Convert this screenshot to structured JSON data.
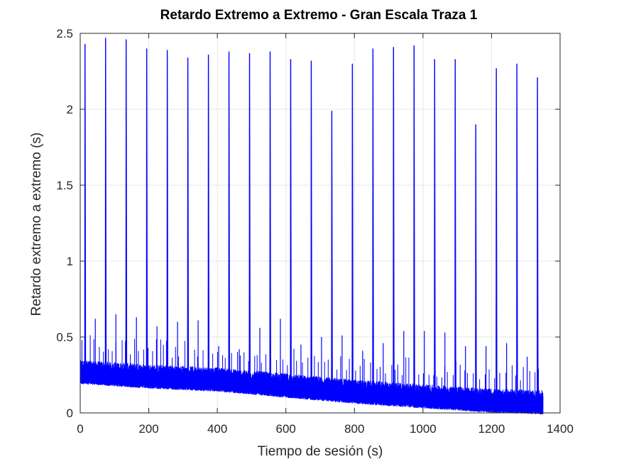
{
  "chart_data": {
    "type": "line",
    "title": "Retardo Extremo a Extremo - Gran Escala Traza 1",
    "xlabel": "Tiempo de sesión (s)",
    "ylabel": "Retardo extremo a extremo (s)",
    "xlim": [
      0,
      1400
    ],
    "ylim": [
      0,
      2.5
    ],
    "xticks": [
      "0",
      "200",
      "400",
      "600",
      "800",
      "1000",
      "1200",
      "1400"
    ],
    "yticks": [
      "0",
      "0.5",
      "1",
      "1.5",
      "2",
      "2.5"
    ],
    "grid": true,
    "legend": "none",
    "line_color": "#0000ff",
    "x_end": 1350,
    "baseline": {
      "description_points": [
        [
          0,
          0.25
        ],
        [
          200,
          0.22
        ],
        [
          400,
          0.2
        ],
        [
          600,
          0.16
        ],
        [
          800,
          0.12
        ],
        [
          1000,
          0.09
        ],
        [
          1200,
          0.06
        ],
        [
          1350,
          0.05
        ]
      ],
      "noise_amplitude": 0.1
    },
    "major_spikes": [
      {
        "x": 14,
        "y": 2.43
      },
      {
        "x": 74,
        "y": 2.47
      },
      {
        "x": 134,
        "y": 2.46
      },
      {
        "x": 194,
        "y": 2.4
      },
      {
        "x": 254,
        "y": 2.39
      },
      {
        "x": 314,
        "y": 2.34
      },
      {
        "x": 374,
        "y": 2.36
      },
      {
        "x": 434,
        "y": 2.38
      },
      {
        "x": 494,
        "y": 2.37
      },
      {
        "x": 554,
        "y": 2.38
      },
      {
        "x": 614,
        "y": 2.33
      },
      {
        "x": 674,
        "y": 2.32
      },
      {
        "x": 734,
        "y": 1.99
      },
      {
        "x": 794,
        "y": 2.3
      },
      {
        "x": 854,
        "y": 2.4
      },
      {
        "x": 914,
        "y": 2.41
      },
      {
        "x": 974,
        "y": 2.42
      },
      {
        "x": 1034,
        "y": 2.33
      },
      {
        "x": 1094,
        "y": 2.33
      },
      {
        "x": 1154,
        "y": 1.9
      },
      {
        "x": 1214,
        "y": 2.27
      },
      {
        "x": 1274,
        "y": 2.3
      },
      {
        "x": 1334,
        "y": 2.21
      }
    ],
    "minor_spikes": [
      {
        "x": 44,
        "y": 0.62
      },
      {
        "x": 104,
        "y": 0.65
      },
      {
        "x": 164,
        "y": 0.63
      },
      {
        "x": 224,
        "y": 0.57
      },
      {
        "x": 284,
        "y": 0.6
      },
      {
        "x": 344,
        "y": 0.61
      },
      {
        "x": 404,
        "y": 0.44
      },
      {
        "x": 464,
        "y": 0.42
      },
      {
        "x": 524,
        "y": 0.56
      },
      {
        "x": 584,
        "y": 0.62
      },
      {
        "x": 644,
        "y": 0.45
      },
      {
        "x": 704,
        "y": 0.5
      },
      {
        "x": 764,
        "y": 0.51
      },
      {
        "x": 824,
        "y": 0.41
      },
      {
        "x": 884,
        "y": 0.46
      },
      {
        "x": 944,
        "y": 0.54
      },
      {
        "x": 1004,
        "y": 0.54
      },
      {
        "x": 1064,
        "y": 0.53
      },
      {
        "x": 1124,
        "y": 0.44
      },
      {
        "x": 1184,
        "y": 0.44
      },
      {
        "x": 1244,
        "y": 0.46
      },
      {
        "x": 1304,
        "y": 0.37
      }
    ]
  }
}
